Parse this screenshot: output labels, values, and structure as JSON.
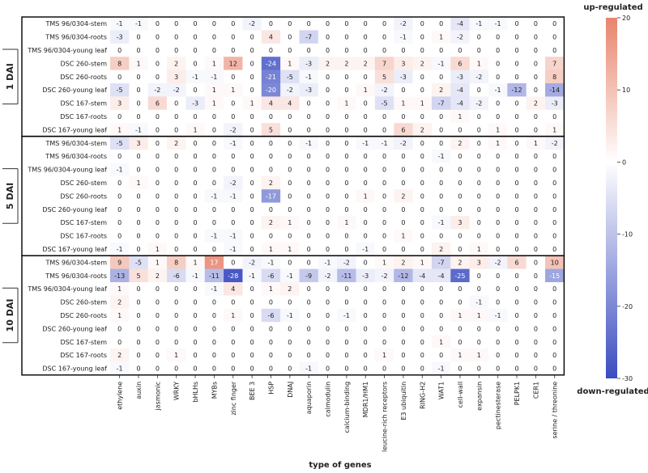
{
  "chart_data": {
    "type": "heatmap",
    "xlabel": "type of genes",
    "colorbar": {
      "min": -30,
      "max": 20,
      "ticks": [
        20,
        10,
        0,
        -10,
        -20,
        -30
      ],
      "top_label": "up-regulated",
      "bottom_label": "down-regulated",
      "color_low": "#3b4cc0",
      "color_mid": "#ffffff",
      "color_high": "#e8846c"
    },
    "columns": [
      "ethylene",
      "auxin",
      "jasmonic",
      "WRKY",
      "bHLHs",
      "MYBs",
      "zinc finger",
      "BEE 3",
      "HSP",
      "DNAJ",
      "aquaporin",
      "calmodulin",
      "calcium-binding",
      "MDR1/HM1",
      "leucine-rich receptors",
      "E3 ubiquitin",
      "RING-H2",
      "WAT1",
      "cell-wall",
      "expansin",
      "pectinesterase",
      "PELPK1",
      "CER1",
      "serine / threonine"
    ],
    "groups": [
      {
        "label": "1 DAI",
        "rows": [
          {
            "label": "TMS 96/0304-stem",
            "values": [
              -1,
              -1,
              0,
              0,
              0,
              0,
              0,
              -2,
              0,
              0,
              0,
              0,
              0,
              0,
              0,
              -2,
              0,
              0,
              -4,
              -1,
              -1,
              0,
              0,
              0
            ]
          },
          {
            "label": "TMS 96/0304-roots",
            "values": [
              -3,
              0,
              0,
              0,
              0,
              0,
              0,
              0,
              4,
              0,
              -7,
              0,
              0,
              0,
              0,
              -1,
              0,
              1,
              -2,
              0,
              0,
              0,
              0,
              0
            ]
          },
          {
            "label": "TMS 96/0304-young leaf",
            "values": [
              0,
              0,
              0,
              0,
              0,
              0,
              0,
              0,
              0,
              0,
              0,
              0,
              0,
              0,
              0,
              0,
              0,
              0,
              0,
              0,
              0,
              0,
              0,
              0
            ]
          },
          {
            "label": "DSC 260-stem",
            "values": [
              8,
              1,
              0,
              2,
              0,
              1,
              12,
              0,
              -24,
              1,
              -3,
              2,
              2,
              2,
              7,
              3,
              2,
              -1,
              6,
              1,
              0,
              0,
              0,
              7
            ]
          },
          {
            "label": "DSC 260-roots",
            "values": [
              0,
              0,
              0,
              3,
              -1,
              -1,
              0,
              0,
              -21,
              -5,
              -1,
              0,
              0,
              0,
              5,
              -3,
              0,
              0,
              -3,
              -2,
              0,
              0,
              0,
              8
            ]
          },
          {
            "label": "DSC 260-young leaf",
            "values": [
              -5,
              0,
              -2,
              -2,
              0,
              1,
              1,
              0,
              -20,
              -2,
              -3,
              0,
              0,
              1,
              -2,
              0,
              0,
              2,
              -4,
              0,
              -1,
              -12,
              0,
              -14
            ]
          },
          {
            "label": "DSC 167-stem",
            "values": [
              3,
              0,
              6,
              0,
              -3,
              1,
              0,
              1,
              4,
              4,
              0,
              0,
              1,
              0,
              -5,
              1,
              1,
              -7,
              -4,
              -2,
              0,
              0,
              2,
              -3
            ]
          },
          {
            "label": "DSC 167-roots",
            "values": [
              0,
              0,
              0,
              0,
              0,
              0,
              0,
              0,
              0,
              0,
              0,
              0,
              0,
              0,
              0,
              0,
              0,
              0,
              1,
              0,
              0,
              0,
              0,
              0
            ]
          },
          {
            "label": "DSC 167-young leaf",
            "values": [
              1,
              -1,
              0,
              0,
              1,
              0,
              -2,
              0,
              5,
              0,
              0,
              0,
              0,
              0,
              0,
              6,
              2,
              0,
              0,
              0,
              1,
              0,
              0,
              1
            ]
          }
        ]
      },
      {
        "label": "5 DAI",
        "rows": [
          {
            "label": "TMS 96/0304-stem",
            "values": [
              -5,
              3,
              0,
              2,
              0,
              0,
              -1,
              0,
              0,
              0,
              -1,
              0,
              0,
              -1,
              -1,
              -2,
              0,
              0,
              2,
              0,
              1,
              0,
              1,
              -2
            ]
          },
          {
            "label": "TMS 96/0304-roots",
            "values": [
              0,
              0,
              0,
              0,
              0,
              0,
              0,
              0,
              0,
              0,
              0,
              0,
              0,
              0,
              0,
              0,
              0,
              -1,
              0,
              0,
              0,
              0,
              0,
              0
            ]
          },
          {
            "label": "TMS 96/0304-young leaf",
            "values": [
              -1,
              0,
              0,
              0,
              0,
              0,
              0,
              0,
              0,
              0,
              0,
              0,
              0,
              0,
              0,
              0,
              0,
              0,
              0,
              0,
              0,
              0,
              0,
              0
            ]
          },
          {
            "label": "DSC 260-stem",
            "values": [
              0,
              1,
              0,
              0,
              0,
              0,
              -2,
              0,
              2,
              0,
              0,
              0,
              0,
              0,
              0,
              0,
              0,
              0,
              0,
              0,
              0,
              0,
              0,
              0
            ]
          },
          {
            "label": "DSC 260-roots",
            "values": [
              0,
              0,
              0,
              0,
              0,
              -1,
              -1,
              0,
              -17,
              0,
              0,
              0,
              0,
              1,
              0,
              2,
              0,
              0,
              0,
              0,
              0,
              0,
              0,
              0
            ]
          },
          {
            "label": "DSC 260-young leaf",
            "values": [
              0,
              0,
              0,
              0,
              0,
              0,
              0,
              0,
              0,
              0,
              0,
              0,
              0,
              0,
              0,
              0,
              0,
              0,
              0,
              0,
              0,
              0,
              0,
              0
            ]
          },
          {
            "label": "DSC 167-stem",
            "values": [
              0,
              0,
              0,
              0,
              0,
              0,
              0,
              0,
              2,
              1,
              0,
              0,
              1,
              0,
              0,
              0,
              0,
              -1,
              3,
              0,
              0,
              0,
              0,
              0
            ]
          },
          {
            "label": "DSC 167-roots",
            "values": [
              0,
              0,
              0,
              0,
              0,
              -1,
              -1,
              0,
              0,
              0,
              0,
              0,
              0,
              0,
              0,
              1,
              0,
              0,
              0,
              0,
              0,
              0,
              0,
              0
            ]
          },
          {
            "label": "DSC 167-young leaf",
            "values": [
              -1,
              0,
              1,
              0,
              0,
              0,
              -1,
              0,
              1,
              1,
              0,
              0,
              0,
              -1,
              0,
              0,
              0,
              2,
              0,
              1,
              0,
              0,
              0,
              0
            ]
          }
        ]
      },
      {
        "label": "10 DAI",
        "rows": [
          {
            "label": "TMS 96/0304-stem",
            "values": [
              9,
              -5,
              1,
              8,
              1,
              17,
              0,
              -2,
              -1,
              0,
              0,
              -1,
              -2,
              0,
              1,
              2,
              1,
              -7,
              2,
              3,
              -2,
              6,
              0,
              10
            ]
          },
          {
            "label": "TMS 96/0304-roots",
            "values": [
              -13,
              5,
              2,
              -6,
              -1,
              -11,
              -28,
              -1,
              -6,
              -1,
              -9,
              -2,
              -11,
              -3,
              -2,
              -12,
              -4,
              -4,
              -25,
              0,
              0,
              0,
              0,
              -15
            ]
          },
          {
            "label": "TMS 96/0304-young leaf",
            "values": [
              1,
              0,
              0,
              0,
              0,
              -1,
              4,
              0,
              1,
              2,
              0,
              0,
              0,
              0,
              0,
              0,
              0,
              0,
              0,
              0,
              0,
              0,
              0,
              0
            ]
          },
          {
            "label": "DSC 260-stem",
            "values": [
              2,
              0,
              0,
              0,
              0,
              0,
              0,
              0,
              0,
              0,
              0,
              0,
              0,
              0,
              0,
              0,
              0,
              0,
              0,
              -1,
              0,
              0,
              0,
              0
            ]
          },
          {
            "label": "DSC 260-roots",
            "values": [
              1,
              0,
              0,
              0,
              0,
              0,
              1,
              0,
              -6,
              -1,
              0,
              0,
              -1,
              0,
              0,
              0,
              0,
              0,
              1,
              1,
              -1,
              0,
              0,
              0
            ]
          },
          {
            "label": "DSC 260-young leaf",
            "values": [
              0,
              0,
              0,
              0,
              0,
              0,
              0,
              0,
              0,
              0,
              0,
              0,
              0,
              0,
              0,
              0,
              0,
              0,
              0,
              0,
              0,
              0,
              0,
              0
            ]
          },
          {
            "label": "DSC 167-stem",
            "values": [
              0,
              0,
              0,
              0,
              0,
              0,
              0,
              0,
              0,
              0,
              0,
              0,
              0,
              0,
              0,
              0,
              0,
              1,
              0,
              0,
              0,
              0,
              0,
              0
            ]
          },
          {
            "label": "DSC 167-roots",
            "values": [
              2,
              0,
              0,
              1,
              0,
              0,
              0,
              0,
              0,
              0,
              0,
              0,
              0,
              0,
              1,
              0,
              0,
              0,
              1,
              1,
              0,
              0,
              0,
              0
            ]
          },
          {
            "label": "DSC 167-young leaf",
            "values": [
              -1,
              0,
              0,
              0,
              0,
              0,
              0,
              0,
              0,
              0,
              -1,
              0,
              0,
              0,
              0,
              0,
              0,
              -1,
              0,
              0,
              0,
              0,
              0,
              0
            ]
          }
        ]
      }
    ]
  }
}
